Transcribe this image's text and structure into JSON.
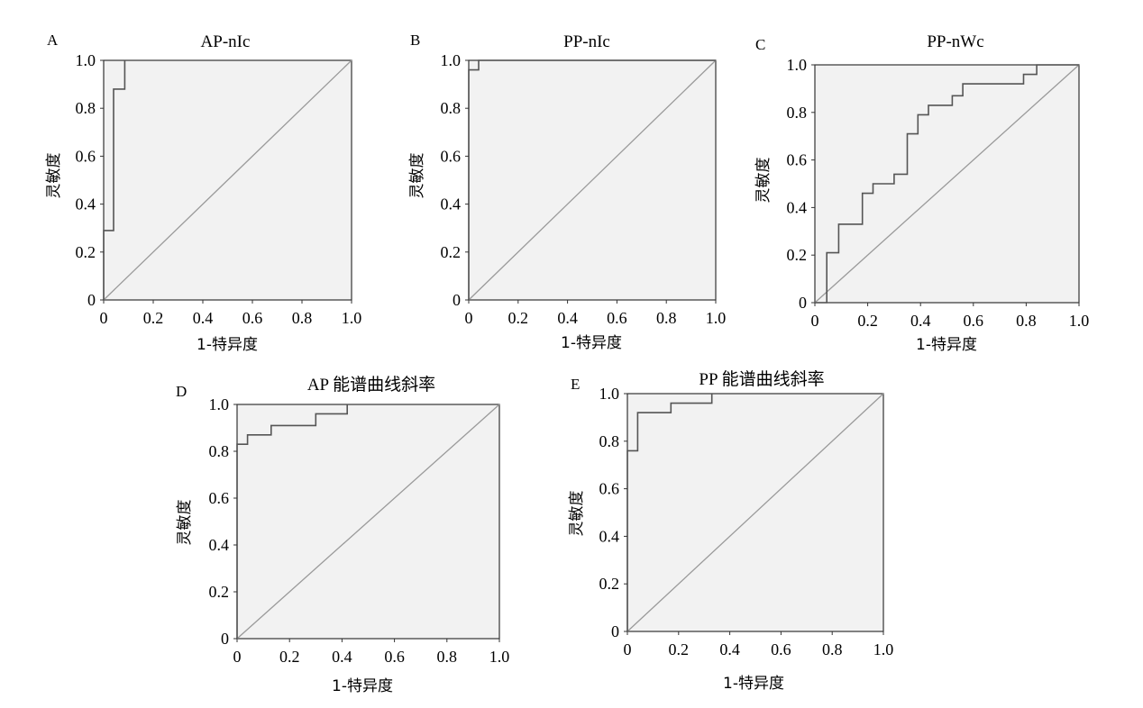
{
  "chart_data": [
    {
      "panel": "A",
      "type": "line",
      "title": "AP-nIc",
      "xlabel": "1-特异度",
      "ylabel": "灵敏度",
      "xlim": [
        0,
        1
      ],
      "ylim": [
        0,
        1
      ],
      "x_tick_labels": [
        "0",
        "0.2",
        "0.4",
        "0.6",
        "0.8",
        "1.0"
      ],
      "y_tick_labels": [
        "0",
        "0.2",
        "0.4",
        "0.6",
        "0.8",
        "1.0"
      ],
      "reference_line": true,
      "series": [
        {
          "x": [
            0,
            0,
            0.04,
            0.04,
            0.085,
            0.085
          ],
          "y": [
            0,
            0.29,
            0.29,
            0.88,
            0.88,
            1.0
          ]
        }
      ]
    },
    {
      "panel": "B",
      "type": "line",
      "title": "PP-nIc",
      "xlabel": "1-特异度",
      "ylabel": "灵敏度",
      "xlim": [
        0,
        1
      ],
      "ylim": [
        0,
        1
      ],
      "x_tick_labels": [
        "0",
        "0.2",
        "0.4",
        "0.6",
        "0.8",
        "1.0"
      ],
      "y_tick_labels": [
        "0",
        "0.2",
        "0.4",
        "0.6",
        "0.8",
        "1.0"
      ],
      "reference_line": true,
      "series": [
        {
          "x": [
            0,
            0,
            0.04,
            0.04,
            1.0
          ],
          "y": [
            0,
            0.96,
            0.96,
            1.0,
            1.0
          ]
        }
      ]
    },
    {
      "panel": "C",
      "type": "line",
      "title": "PP-nWc",
      "xlabel": "1-特异度",
      "ylabel": "灵敏度",
      "xlim": [
        0,
        1
      ],
      "ylim": [
        0,
        1
      ],
      "x_tick_labels": [
        "0",
        "0.2",
        "0.4",
        "0.6",
        "0.8",
        "1.0"
      ],
      "y_tick_labels": [
        "0",
        "0.2",
        "0.4",
        "0.6",
        "0.8",
        "1.0"
      ],
      "reference_line": true,
      "series": [
        {
          "x": [
            0,
            0.045,
            0.045,
            0.09,
            0.09,
            0.18,
            0.18,
            0.22,
            0.22,
            0.3,
            0.3,
            0.35,
            0.35,
            0.39,
            0.39,
            0.43,
            0.43,
            0.52,
            0.52,
            0.56,
            0.56,
            0.79,
            0.79,
            0.84,
            0.84,
            1.0
          ],
          "y": [
            0,
            0,
            0.21,
            0.21,
            0.33,
            0.33,
            0.46,
            0.46,
            0.5,
            0.5,
            0.54,
            0.54,
            0.71,
            0.71,
            0.79,
            0.79,
            0.83,
            0.83,
            0.87,
            0.87,
            0.92,
            0.92,
            0.96,
            0.96,
            1.0,
            1.0
          ]
        }
      ]
    },
    {
      "panel": "D",
      "type": "line",
      "title": "AP 能谱曲线斜率",
      "xlabel": "1-特异度",
      "ylabel": "灵敏度",
      "xlim": [
        0,
        1
      ],
      "ylim": [
        0,
        1
      ],
      "x_tick_labels": [
        "0",
        "0.2",
        "0.4",
        "0.6",
        "0.8",
        "1.0"
      ],
      "y_tick_labels": [
        "0",
        "0.2",
        "0.4",
        "0.6",
        "0.8",
        "1.0"
      ],
      "reference_line": true,
      "series": [
        {
          "x": [
            0,
            0,
            0.04,
            0.04,
            0.13,
            0.13,
            0.3,
            0.3,
            0.42,
            0.42
          ],
          "y": [
            0,
            0.83,
            0.83,
            0.87,
            0.87,
            0.91,
            0.91,
            0.96,
            0.96,
            1.0
          ]
        }
      ]
    },
    {
      "panel": "E",
      "type": "line",
      "title": "PP 能谱曲线斜率",
      "xlabel": "1-特异度",
      "ylabel": "灵敏度",
      "xlim": [
        0,
        1
      ],
      "ylim": [
        0,
        1
      ],
      "x_tick_labels": [
        "0",
        "0.2",
        "0.4",
        "0.6",
        "0.8",
        "1.0"
      ],
      "y_tick_labels": [
        "0",
        "0.2",
        "0.4",
        "0.6",
        "0.8",
        "1.0"
      ],
      "reference_line": true,
      "series": [
        {
          "x": [
            0,
            0,
            0.04,
            0.04,
            0.17,
            0.17,
            0.33,
            0.33
          ],
          "y": [
            0,
            0.76,
            0.76,
            0.92,
            0.92,
            0.96,
            0.96,
            1.0
          ]
        }
      ]
    }
  ]
}
